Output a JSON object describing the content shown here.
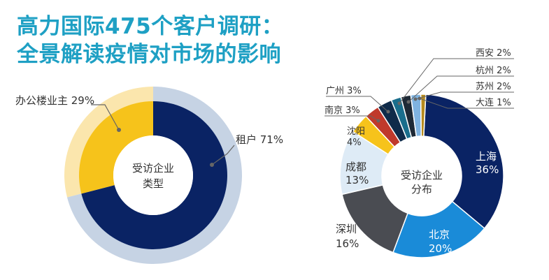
{
  "title": {
    "line1": "高力国际475个客户调研：",
    "line2": "全景解读疫情对市场的影响"
  },
  "colors": {
    "title": "#1ea0c4",
    "outer_ring": "#c6d3e4",
    "outer_ring_light": "#fbe6ad"
  },
  "chart_data": [
    {
      "type": "pie",
      "title": "受访企业类型",
      "center_label": [
        "受访企业",
        "类型"
      ],
      "slices": [
        {
          "name": "租户",
          "value": 71,
          "label": "租户 71%",
          "color": "#0a2364"
        },
        {
          "name": "办公楼业主",
          "value": 29,
          "label": "办公楼业主 29%",
          "color": "#f6c31b"
        }
      ]
    },
    {
      "type": "pie",
      "title": "受访企业分布",
      "center_label": [
        "受访企业",
        "分布"
      ],
      "slices": [
        {
          "name": "上海",
          "value": 36,
          "label": "上海",
          "pct": "36%",
          "color": "#0a2364"
        },
        {
          "name": "北京",
          "value": 20,
          "label": "北京",
          "pct": "20%",
          "color": "#1a8bd8"
        },
        {
          "name": "深圳",
          "value": 16,
          "label": "深圳",
          "pct": "16%",
          "color": "#4a4c52"
        },
        {
          "name": "成都",
          "value": 13,
          "label": "成都",
          "pct": "13%",
          "color": "#deebf6"
        },
        {
          "name": "沈阳",
          "value": 4,
          "label": "沈阳",
          "pct": "4%",
          "color": "#f6c31b"
        },
        {
          "name": "南京",
          "value": 3,
          "label": "南京 3%",
          "color": "#c0392b"
        },
        {
          "name": "广州",
          "value": 3,
          "label": "广州 3%",
          "color": "#0f2b4a"
        },
        {
          "name": "西安",
          "value": 2,
          "label": "西安 2%",
          "color": "#1a6e8c"
        },
        {
          "name": "杭州",
          "value": 2,
          "label": "杭州 2%",
          "color": "#1e2a36"
        },
        {
          "name": "苏州",
          "value": 2,
          "label": "苏州 2%",
          "color": "#7fb3e0"
        },
        {
          "name": "大连",
          "value": 1,
          "label": "大连 1%",
          "color": "#b58a1e"
        }
      ]
    }
  ]
}
